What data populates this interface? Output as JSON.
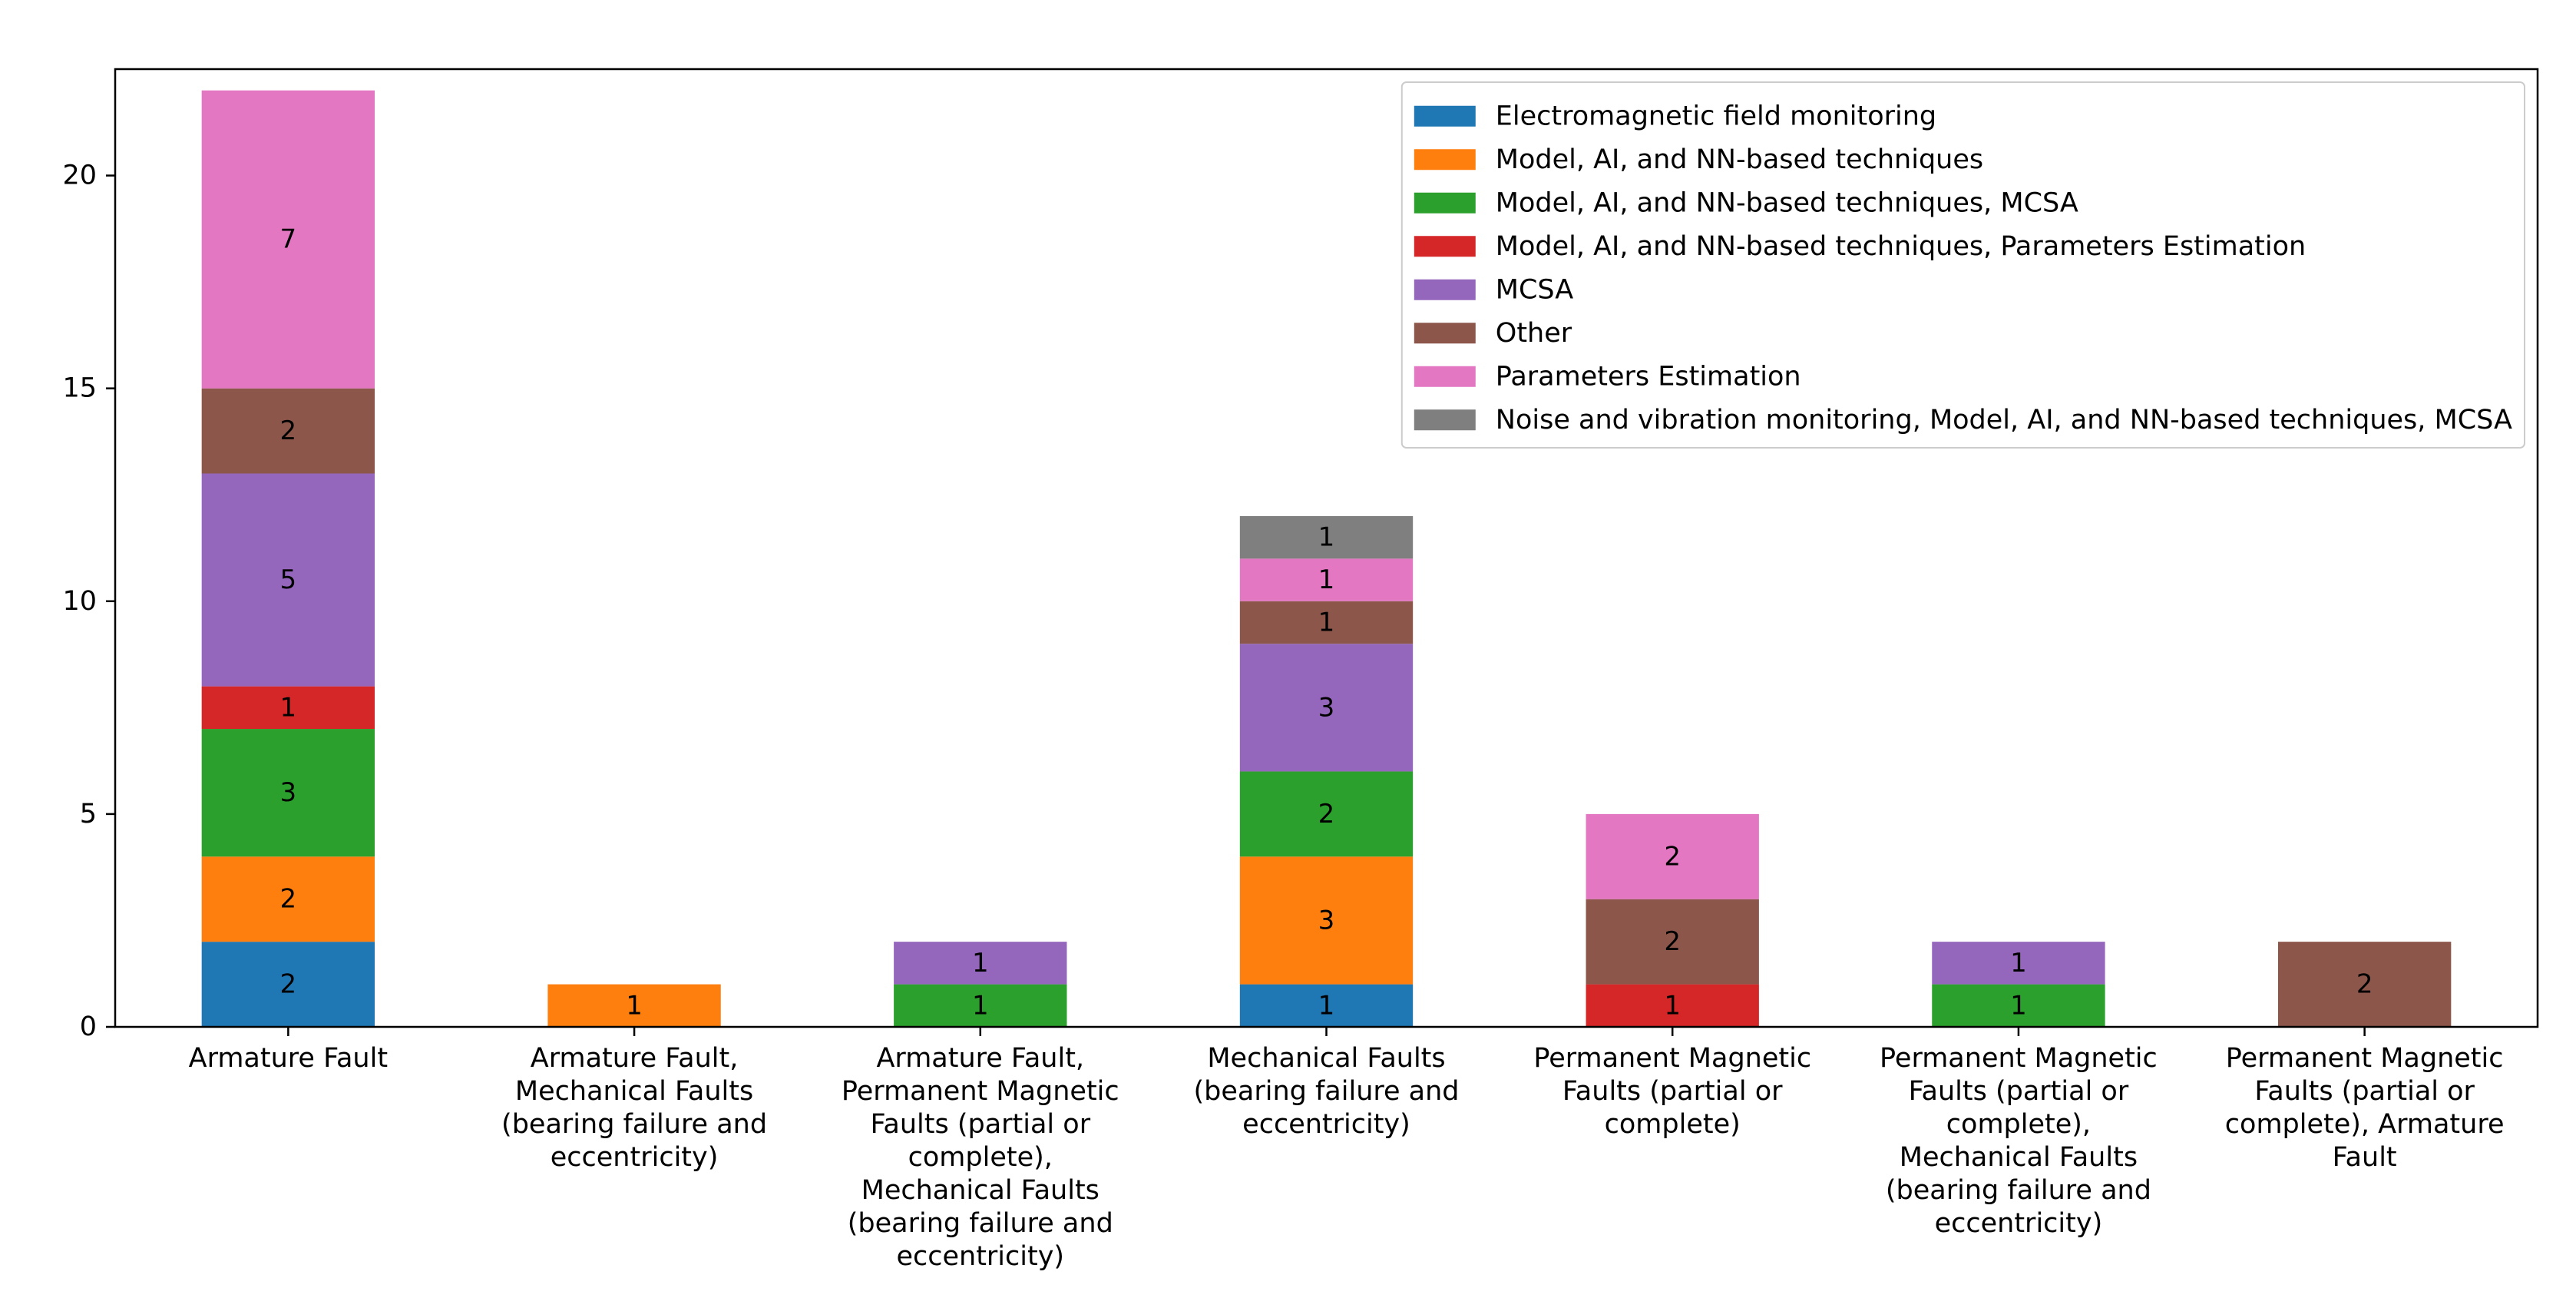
{
  "chart_data": {
    "type": "bar",
    "stacked": true,
    "title": "",
    "xlabel": "",
    "ylabel": "",
    "ylim": [
      0,
      22.5
    ],
    "yticks": [
      0,
      5,
      10,
      15,
      20
    ],
    "grid": false,
    "legend_position": "top-right",
    "categories": [
      [
        "Armature Fault"
      ],
      [
        "Armature Fault,",
        "Mechanical Faults",
        "(bearing failure and",
        "eccentricity)"
      ],
      [
        "Armature Fault,",
        "Permanent Magnetic",
        "Faults (partial or",
        "complete),",
        "Mechanical Faults",
        "(bearing failure and",
        "eccentricity)"
      ],
      [
        "Mechanical Faults",
        "(bearing failure and",
        "eccentricity)"
      ],
      [
        "Permanent Magnetic",
        "Faults (partial or",
        "complete)"
      ],
      [
        "Permanent Magnetic",
        "Faults (partial or",
        "complete),",
        "Mechanical Faults",
        "(bearing failure and",
        "eccentricity)"
      ],
      [
        "Permanent Magnetic",
        "Faults (partial or",
        "complete), Armature",
        "Fault"
      ]
    ],
    "series": [
      {
        "name": "Electromagnetic field monitoring",
        "color": "#1f77b4",
        "values": [
          2,
          0,
          0,
          1,
          0,
          0,
          0
        ]
      },
      {
        "name": "Model, AI, and NN-based techniques",
        "color": "#ff7f0e",
        "values": [
          2,
          1,
          0,
          3,
          0,
          0,
          0
        ]
      },
      {
        "name": "Model, AI, and NN-based techniques, MCSA",
        "color": "#2ca02c",
        "values": [
          3,
          0,
          1,
          2,
          0,
          1,
          0
        ]
      },
      {
        "name": "Model, AI, and NN-based techniques, Parameters Estimation",
        "color": "#d62728",
        "values": [
          1,
          0,
          0,
          0,
          1,
          0,
          0
        ]
      },
      {
        "name": "MCSA",
        "color": "#9467bd",
        "values": [
          5,
          0,
          1,
          3,
          0,
          1,
          0
        ]
      },
      {
        "name": "Other",
        "color": "#8c564b",
        "values": [
          2,
          0,
          0,
          1,
          2,
          0,
          2
        ]
      },
      {
        "name": "Parameters Estimation",
        "color": "#e377c2",
        "values": [
          7,
          0,
          0,
          1,
          2,
          0,
          0
        ]
      },
      {
        "name": "Noise and vibration monitoring, Model, AI, and NN-based techniques, MCSA",
        "color": "#7f7f7f",
        "values": [
          0,
          0,
          0,
          1,
          0,
          0,
          0
        ]
      }
    ]
  }
}
